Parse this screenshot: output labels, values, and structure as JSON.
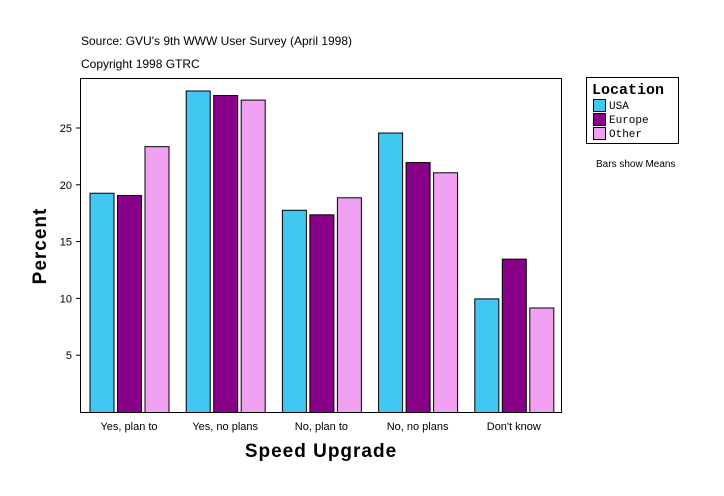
{
  "chart_data": {
    "type": "bar",
    "title": "Source: GVU's 9th WWW User Survey (April 1998)",
    "subtitle": "Copyright 1998 GTRC",
    "xlabel": "Speed Upgrade",
    "ylabel": "Percent",
    "ylim": [
      0,
      29.4
    ],
    "yticks": [
      5,
      10,
      15,
      20,
      25
    ],
    "grid": false,
    "categories": [
      "Yes, plan to",
      "Yes, no plans",
      "No, plan to",
      "No, no plans",
      "Don't know"
    ],
    "legend": {
      "title": "Location",
      "placement": "right"
    },
    "note": "Bars show Means",
    "series": [
      {
        "name": "USA",
        "color": "#40c8f0",
        "values": [
          19.3,
          28.3,
          17.8,
          24.6,
          10.0
        ]
      },
      {
        "name": "Europe",
        "color": "#880088",
        "values": [
          19.1,
          27.9,
          17.4,
          22.0,
          13.5
        ]
      },
      {
        "name": "Other",
        "color": "#f0a0f0",
        "values": [
          23.4,
          27.5,
          18.9,
          21.1,
          9.2
        ]
      }
    ]
  }
}
